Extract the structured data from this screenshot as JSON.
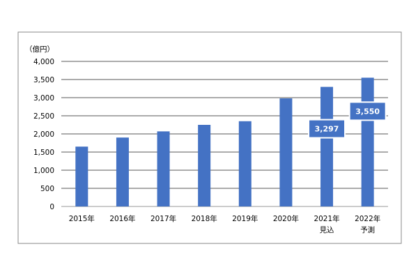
{
  "chart_data": {
    "type": "bar",
    "ylabel": "（億円）",
    "categories": [
      "2015年",
      "2016年",
      "2017年",
      "2018年",
      "2019年",
      "2020年",
      "2021年",
      "2022年"
    ],
    "category_sublabels": [
      "",
      "",
      "",
      "",
      "",
      "",
      "見込",
      "予測"
    ],
    "values": [
      1650,
      1900,
      2070,
      2250,
      2350,
      2980,
      3297,
      3550
    ],
    "data_labels": [
      null,
      null,
      null,
      null,
      null,
      null,
      "3,297",
      "3,550"
    ],
    "ylim": [
      0,
      4000
    ],
    "yticks": [
      0,
      500,
      1000,
      1500,
      2000,
      2500,
      3000,
      3500,
      4000
    ],
    "ytick_labels": [
      "0",
      "500",
      "1,000",
      "1,500",
      "2,000",
      "2,500",
      "3,000",
      "3,500",
      "4,000"
    ],
    "grid": true,
    "legend": "none",
    "colors": {
      "bar": "#4472C4",
      "data_label_box": "#4472C4",
      "data_label_text": "#FFFFFF",
      "gridline": "#1F1F1F"
    }
  }
}
